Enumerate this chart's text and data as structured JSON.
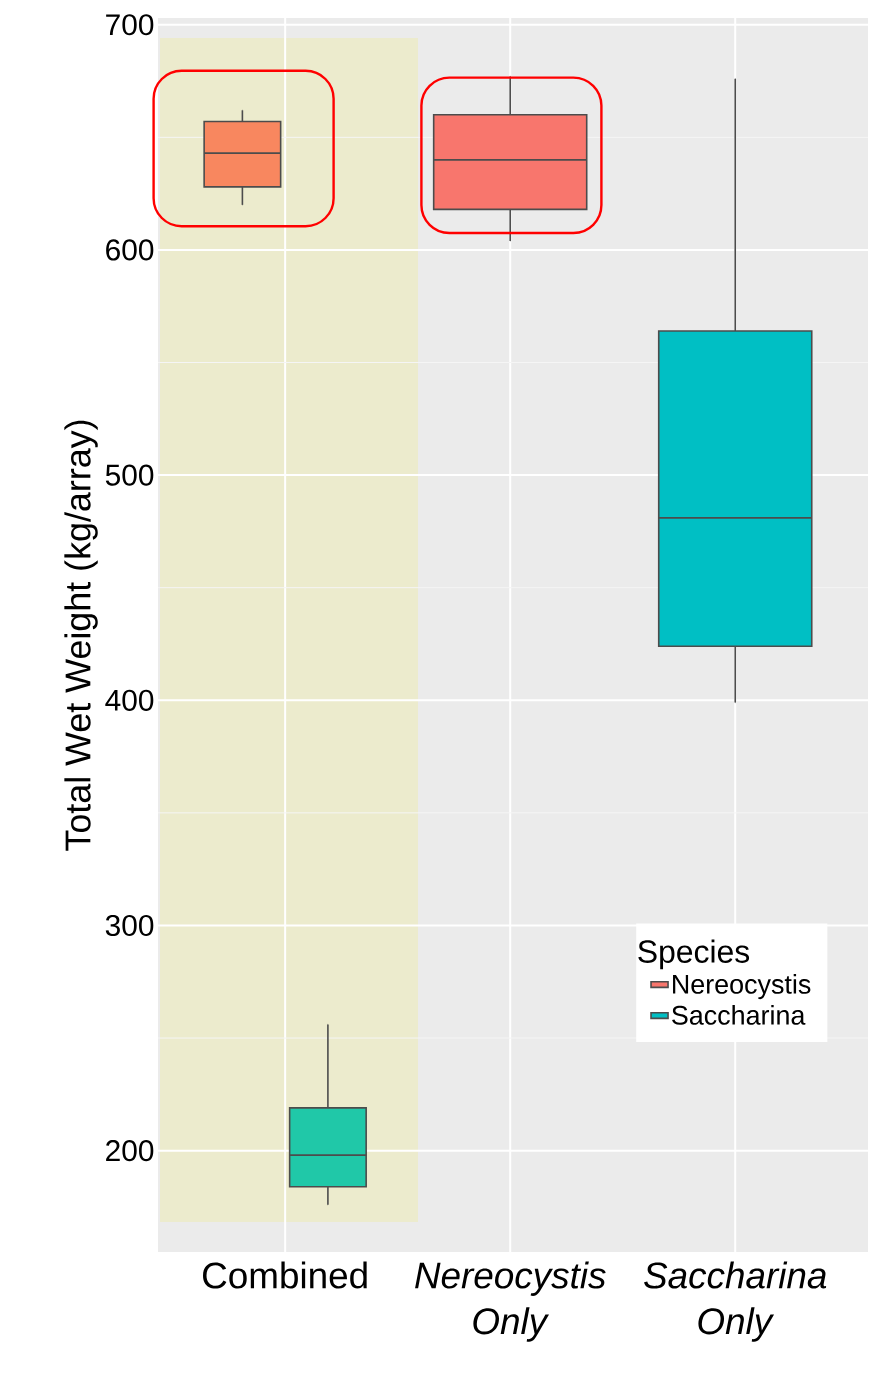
{
  "chart_data": {
    "type": "box",
    "ylabel": "Total Wet Weight (kg/array)",
    "legend_title": "Species",
    "categories": [
      "Combined",
      "*Nereocystis Only*",
      "*Saccharina Only*"
    ],
    "series": [
      {
        "name": "Nereocystis",
        "color": "#f8766d",
        "colors": [
          "#f8875f",
          "#f8766d",
          null
        ],
        "boxes": [
          {
            "low": 620,
            "q1": 628,
            "median": 643,
            "q3": 657,
            "high": 662
          },
          {
            "low": 604,
            "q1": 618,
            "median": 640,
            "q3": 660,
            "high": 677
          },
          null
        ]
      },
      {
        "name": "Saccharina",
        "color": "#00bfc4",
        "colors": [
          "#20c8a8",
          null,
          "#00bfc4"
        ],
        "boxes": [
          {
            "low": 176,
            "q1": 184,
            "median": 198,
            "q3": 219,
            "high": 256
          },
          null,
          {
            "low": 399,
            "q1": 424,
            "median": 481,
            "q3": 564,
            "high": 676
          }
        ]
      }
    ],
    "ylim": [
      155,
      703
    ],
    "yticks": [
      200,
      300,
      400,
      500,
      600,
      700
    ],
    "grid": true,
    "legend": "bottom right"
  }
}
